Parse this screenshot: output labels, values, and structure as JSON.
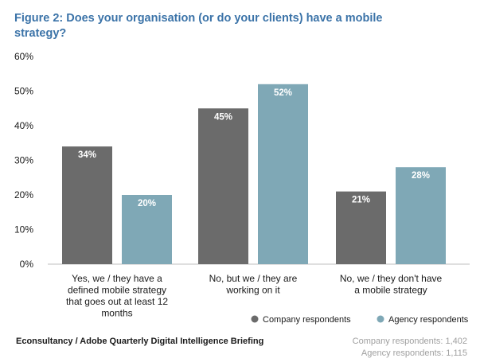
{
  "chart_data": {
    "type": "bar",
    "title_lines": [
      "Figure 2: Does your organisation (or do your clients) have a mobile",
      "strategy?"
    ],
    "categories": [
      [
        "Yes, we / they have a",
        "defined mobile strategy",
        "that goes out at least 12",
        "months"
      ],
      [
        "No, but we / they are",
        "working on it"
      ],
      [
        "No, we / they don't have",
        "a mobile strategy"
      ]
    ],
    "series": [
      {
        "name": "Company respondents",
        "values": [
          34,
          45,
          21
        ],
        "color": "#6b6b6b"
      },
      {
        "name": "Agency respondents",
        "values": [
          20,
          52,
          28
        ],
        "color": "#7fa8b6"
      }
    ],
    "ylim": [
      0,
      60
    ],
    "yticks": [
      "0%",
      "10%",
      "20%",
      "30%",
      "40%",
      "50%",
      "60%"
    ],
    "value_suffix": "%",
    "grid": false,
    "legend_position": "bottom-right",
    "title_color": "#3b73a8"
  },
  "footer": {
    "source": "Econsultancy / Adobe Quarterly Digital Intelligence Briefing",
    "notes": [
      "Company respondents: 1,402",
      "Agency respondents: 1,115"
    ]
  }
}
